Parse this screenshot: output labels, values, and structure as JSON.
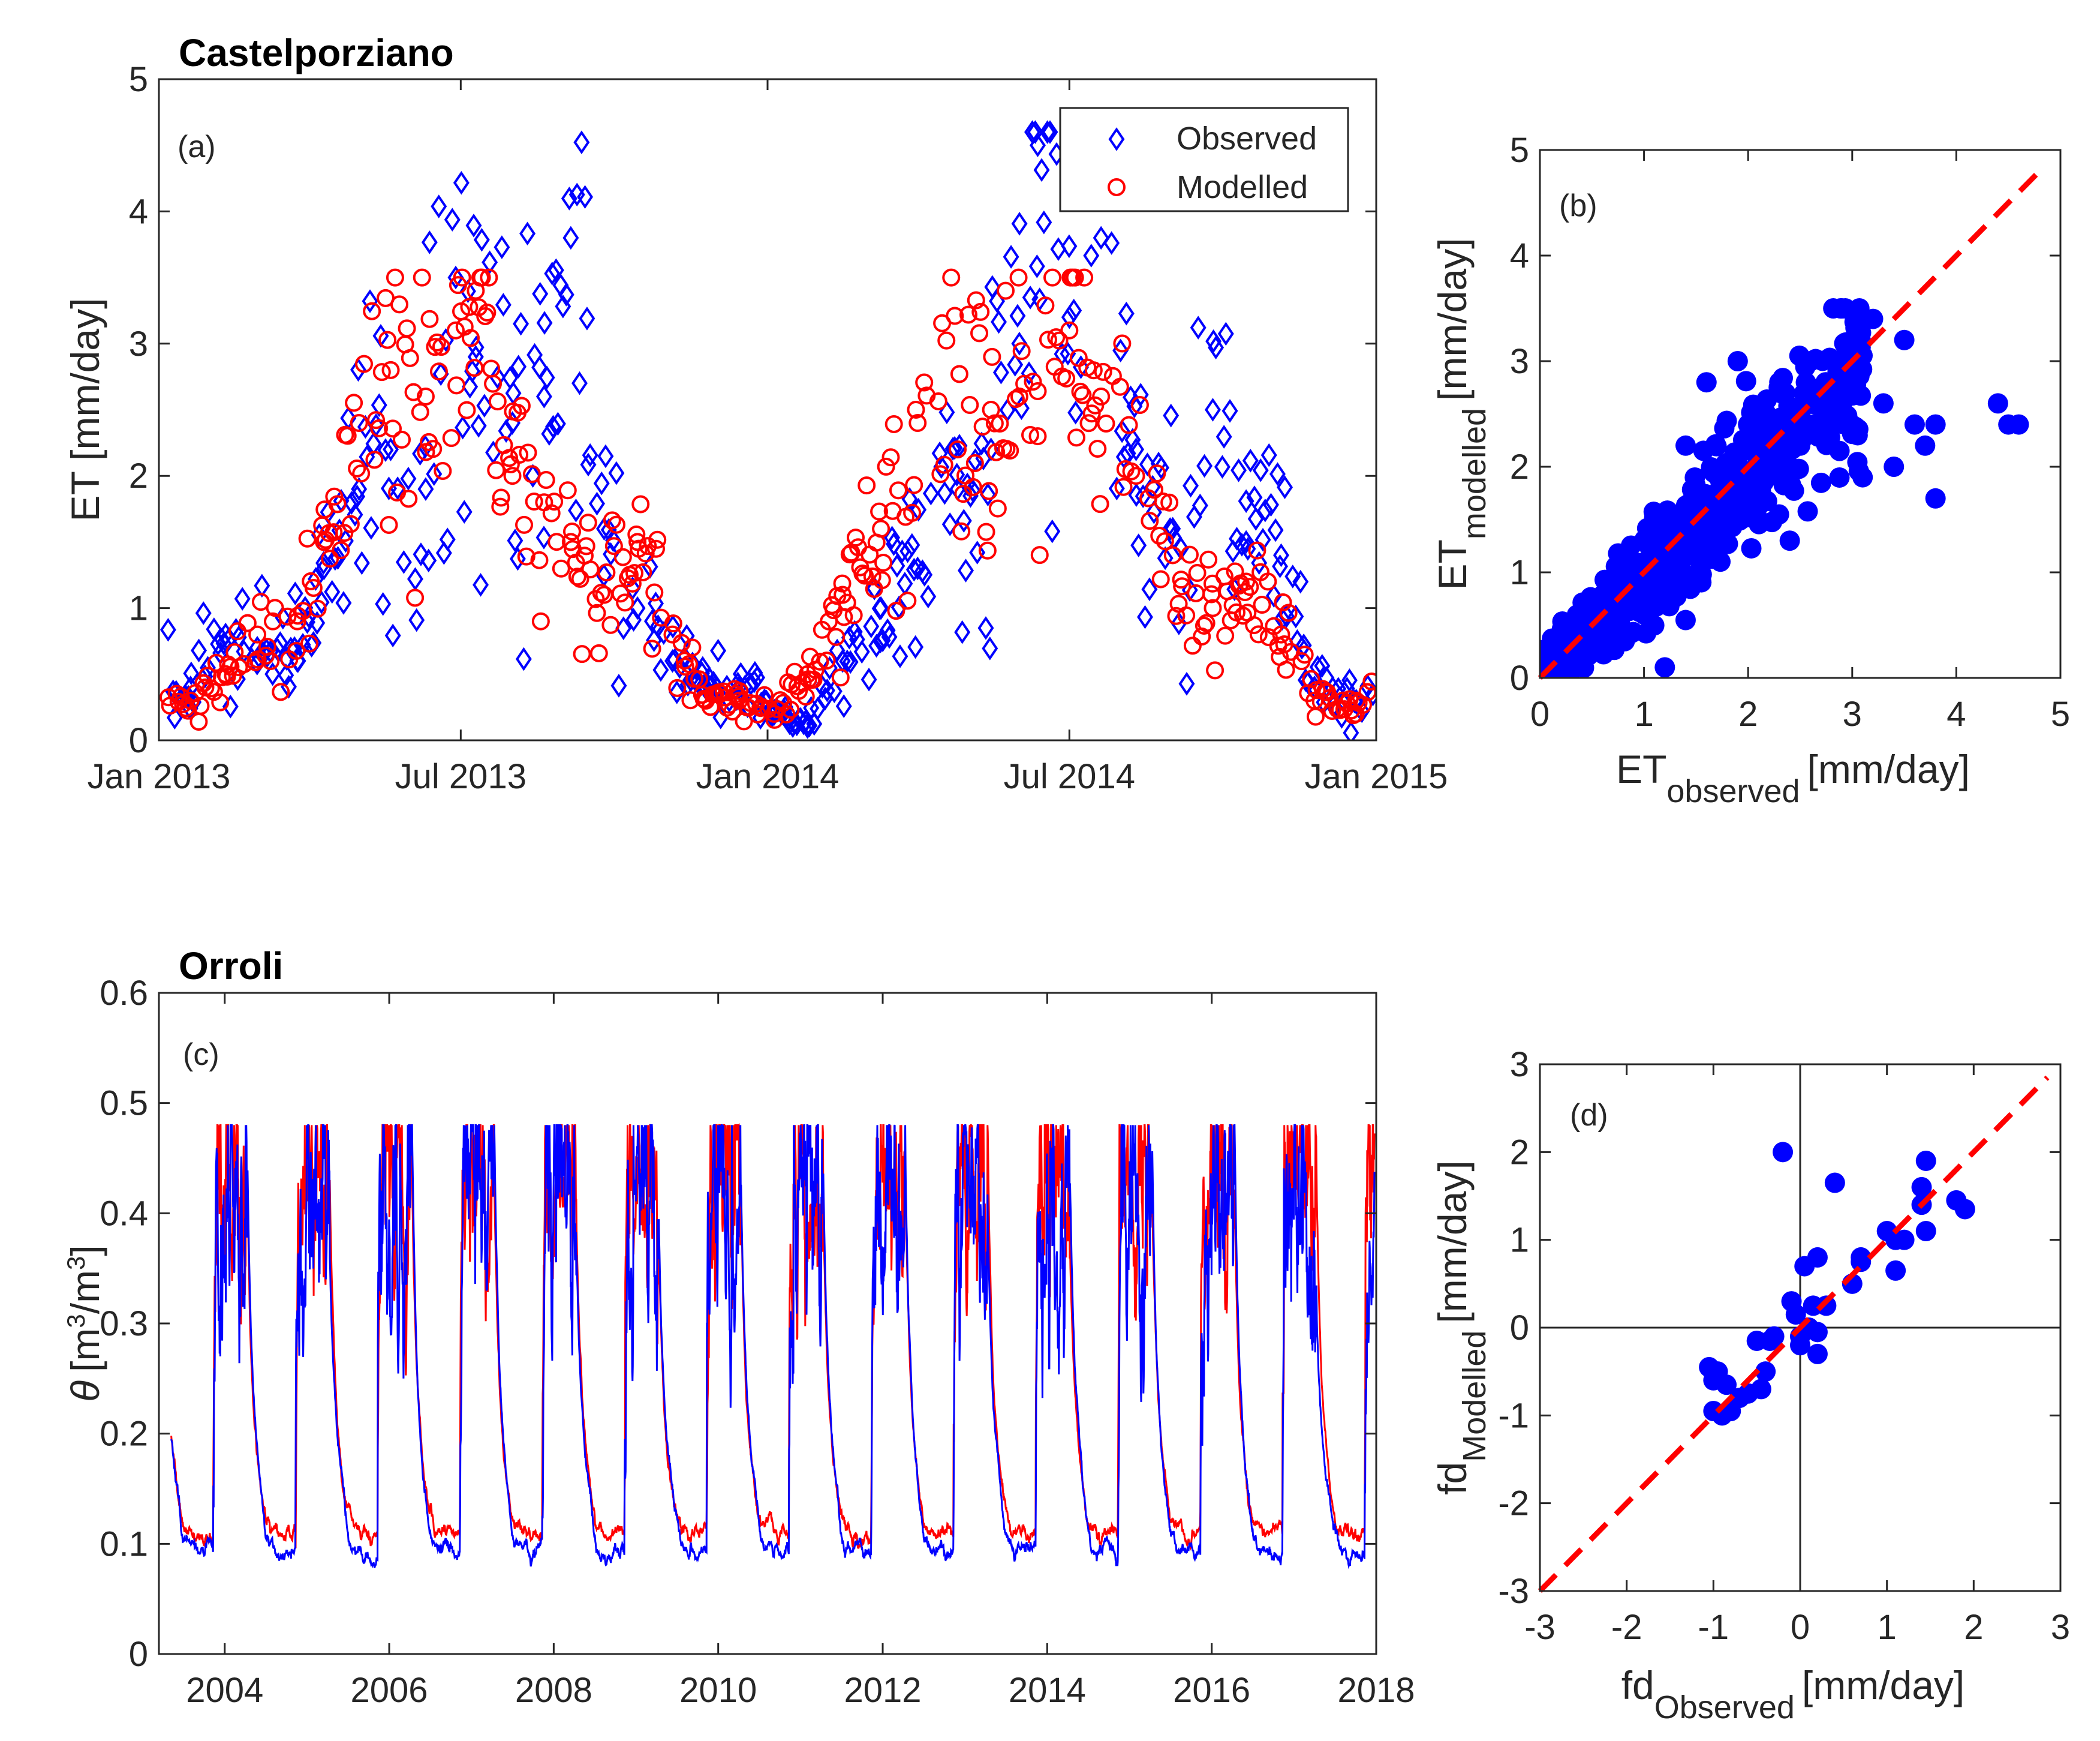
{
  "colors": {
    "observed": "#0000ff",
    "modelled": "#ff0000",
    "one_to_one": "#ff0000",
    "axis": "#262626"
  },
  "chart_data": [
    {
      "id": "a",
      "type": "scatter",
      "title": "Castelporziano",
      "panel_label": "(a)",
      "ylabel": "ET [mm/day]",
      "xlabel": "",
      "xlim": [
        "2013-01-01",
        "2015-01-01"
      ],
      "ylim": [
        0,
        5
      ],
      "x_ticklabels": [
        "Jan 2013",
        "Jul 2013",
        "Jan 2014",
        "Jul 2014",
        "Jan 2015"
      ],
      "y_ticklabels": [
        "0",
        "1",
        "2",
        "3",
        "4",
        "5"
      ],
      "legend_position": "top-right",
      "series": [
        {
          "name": "Observed",
          "marker": "diamond-open",
          "color": "#0000ff",
          "approx_points": [
            [
              "2013-01-20",
              0.4
            ],
            [
              "2013-02-10",
              0.8
            ],
            [
              "2013-03-01",
              0.7
            ],
            [
              "2013-03-25",
              0.6
            ],
            [
              "2013-04-10",
              1.3
            ],
            [
              "2013-05-01",
              1.9
            ],
            [
              "2013-05-20",
              2.2
            ],
            [
              "2013-06-10",
              1.9
            ],
            [
              "2013-06-28",
              3.5
            ],
            [
              "2013-07-10",
              2.9
            ],
            [
              "2013-08-01",
              2.4
            ],
            [
              "2013-08-20",
              2.6
            ],
            [
              "2013-09-05",
              3.8
            ],
            [
              "2013-09-25",
              1.6
            ],
            [
              "2013-10-15",
              1.0
            ],
            [
              "2013-11-05",
              0.6
            ],
            [
              "2013-11-25",
              0.4
            ],
            [
              "2013-12-15",
              0.4
            ],
            [
              "2014-01-05",
              0.2
            ],
            [
              "2014-01-25",
              0.1
            ],
            [
              "2014-02-15",
              0.6
            ],
            [
              "2014-03-10",
              1.0
            ],
            [
              "2014-04-01",
              1.3
            ],
            [
              "2014-04-25",
              1.9
            ],
            [
              "2014-05-15",
              2.2
            ],
            [
              "2014-06-01",
              3.0
            ],
            [
              "2014-06-12",
              4.5
            ],
            [
              "2014-07-01",
              3.2
            ],
            [
              "2014-07-20",
              3.8
            ],
            [
              "2014-08-10",
              2.2
            ],
            [
              "2014-09-01",
              1.6
            ],
            [
              "2014-09-25",
              2.5
            ],
            [
              "2014-10-15",
              1.5
            ],
            [
              "2014-11-05",
              1.4
            ],
            [
              "2014-11-25",
              0.4
            ],
            [
              "2014-12-20",
              0.3
            ]
          ]
        },
        {
          "name": "Modelled",
          "marker": "circle-open",
          "color": "#ff0000",
          "approx_points": [
            [
              "2013-01-20",
              0.3
            ],
            [
              "2013-02-10",
              0.5
            ],
            [
              "2013-03-01",
              0.8
            ],
            [
              "2013-03-25",
              0.9
            ],
            [
              "2013-04-10",
              1.5
            ],
            [
              "2013-05-01",
              2.4
            ],
            [
              "2013-05-20",
              2.8
            ],
            [
              "2013-06-10",
              2.6
            ],
            [
              "2013-06-28",
              3.1
            ],
            [
              "2013-07-10",
              3.4
            ],
            [
              "2013-08-01",
              2.0
            ],
            [
              "2013-08-20",
              1.8
            ],
            [
              "2013-09-05",
              1.5
            ],
            [
              "2013-09-25",
              1.1
            ],
            [
              "2013-10-15",
              1.5
            ],
            [
              "2013-11-05",
              0.8
            ],
            [
              "2013-11-25",
              0.3
            ],
            [
              "2013-12-15",
              0.3
            ],
            [
              "2014-01-05",
              0.2
            ],
            [
              "2014-01-25",
              0.5
            ],
            [
              "2014-02-15",
              1.1
            ],
            [
              "2014-03-10",
              1.6
            ],
            [
              "2014-04-01",
              2.4
            ],
            [
              "2014-04-25",
              2.2
            ],
            [
              "2014-05-15",
              2.5
            ],
            [
              "2014-06-01",
              2.6
            ],
            [
              "2014-06-12",
              2.3
            ],
            [
              "2014-07-01",
              3.1
            ],
            [
              "2014-07-20",
              2.6
            ],
            [
              "2014-08-10",
              2.0
            ],
            [
              "2014-09-01",
              1.4
            ],
            [
              "2014-09-25",
              1.0
            ],
            [
              "2014-10-15",
              1.2
            ],
            [
              "2014-11-05",
              0.8
            ],
            [
              "2014-11-25",
              0.3
            ],
            [
              "2014-12-20",
              0.3
            ]
          ]
        }
      ]
    },
    {
      "id": "b",
      "type": "scatter",
      "panel_label": "(b)",
      "xlabel_main": "ET",
      "xlabel_sub": "observed",
      "xlabel_unit": "[mm/day]",
      "ylabel_main": "ET",
      "ylabel_sub": "modelled",
      "ylabel_unit": "[mm/day]",
      "xlim": [
        0,
        5
      ],
      "ylim": [
        0,
        5
      ],
      "x_ticklabels": [
        "0",
        "1",
        "2",
        "3",
        "4",
        "5"
      ],
      "y_ticklabels": [
        "0",
        "1",
        "2",
        "3",
        "4",
        "5"
      ],
      "reference_line": {
        "style": "dashed",
        "color": "#ff0000",
        "from": [
          0,
          0
        ],
        "to": [
          4.85,
          4.85
        ]
      },
      "series": [
        {
          "name": "",
          "marker": "circle-filled",
          "color": "#0000ff",
          "approx_points": [
            [
              0.1,
              0.1
            ],
            [
              0.3,
              0.4
            ],
            [
              0.5,
              0.3
            ],
            [
              0.7,
              0.9
            ],
            [
              0.9,
              1.1
            ],
            [
              1.0,
              0.6
            ],
            [
              1.2,
              1.4
            ],
            [
              1.2,
              0.1
            ],
            [
              1.4,
              2.2
            ],
            [
              1.5,
              1.7
            ],
            [
              1.6,
              2.8
            ],
            [
              1.7,
              1.2
            ],
            [
              1.8,
              2.0
            ],
            [
              1.9,
              3.0
            ],
            [
              2.0,
              2.4
            ],
            [
              2.1,
              1.5
            ],
            [
              2.2,
              2.1
            ],
            [
              2.3,
              2.8
            ],
            [
              2.4,
              1.3
            ],
            [
              2.5,
              2.2
            ],
            [
              2.6,
              3.0
            ],
            [
              2.8,
              2.5
            ],
            [
              2.9,
              3.5
            ],
            [
              3.0,
              2.9
            ],
            [
              3.1,
              1.9
            ],
            [
              3.2,
              3.4
            ],
            [
              3.3,
              2.6
            ],
            [
              3.4,
              2.0
            ],
            [
              3.5,
              3.2
            ],
            [
              3.6,
              2.4
            ],
            [
              3.7,
              2.2
            ],
            [
              3.8,
              1.7
            ],
            [
              3.8,
              2.4
            ],
            [
              4.4,
              2.6
            ],
            [
              4.5,
              2.4
            ],
            [
              4.6,
              2.4
            ]
          ]
        }
      ]
    },
    {
      "id": "c",
      "type": "line",
      "title": "Orroli",
      "panel_label": "(c)",
      "ylabel_symbol": "θ",
      "ylabel_unit_parts": [
        "[m",
        "3",
        "/m",
        "3",
        "]"
      ],
      "xlim": [
        2003.2,
        2018.0
      ],
      "ylim": [
        0,
        0.6
      ],
      "x_ticklabels": [
        "2004",
        "2006",
        "2008",
        "2010",
        "2012",
        "2014",
        "2016",
        "2018"
      ],
      "y_ticklabels": [
        "0",
        "0.1",
        "0.2",
        "0.3",
        "0.4",
        "0.5",
        "0.6"
      ],
      "series": [
        {
          "name": "",
          "color": "#ff0000",
          "approx_seasonal_pattern": {
            "wet_season_level": [
              0.32,
              0.48
            ],
            "dry_season_level": [
              0.1,
              0.13
            ],
            "saturation_cap": 0.48
          }
        },
        {
          "name": "",
          "color": "#0000ff",
          "approx_seasonal_pattern": {
            "wet_season_level": [
              0.25,
              0.48
            ],
            "dry_season_level": [
              0.08,
              0.1
            ],
            "saturation_cap": 0.48
          }
        }
      ]
    },
    {
      "id": "d",
      "type": "scatter",
      "panel_label": "(d)",
      "xlabel_main": "fd",
      "xlabel_sub": "Observed",
      "xlabel_unit": "[mm/day]",
      "ylabel_main": "fd",
      "ylabel_sub": "Modelled",
      "ylabel_unit": "[mm/day]",
      "xlim": [
        -3,
        3
      ],
      "ylim": [
        -3,
        3
      ],
      "x_ticklabels": [
        "-3",
        "-2",
        "-1",
        "0",
        "1",
        "2",
        "3"
      ],
      "y_ticklabels": [
        "-3",
        "-2",
        "-1",
        "0",
        "1",
        "2",
        "3"
      ],
      "zero_lines": true,
      "reference_line": {
        "style": "dashed",
        "color": "#ff0000",
        "from": [
          -3,
          -3
        ],
        "to": [
          2.85,
          2.85
        ]
      },
      "series": [
        {
          "name": "",
          "marker": "circle-filled",
          "color": "#0000ff",
          "points": [
            [
              -0.2,
              2.0
            ],
            [
              0.2,
              0.8
            ],
            [
              0.05,
              0.7
            ],
            [
              0.4,
              1.65
            ],
            [
              -0.1,
              0.3
            ],
            [
              -0.05,
              0.15
            ],
            [
              0.1,
              0.0
            ],
            [
              -0.3,
              -0.1
            ],
            [
              -0.5,
              -0.15
            ],
            [
              -0.35,
              -0.15
            ],
            [
              0.0,
              -0.2
            ],
            [
              0.0,
              -0.1
            ],
            [
              0.2,
              -0.05
            ],
            [
              0.2,
              -0.3
            ],
            [
              0.15,
              0.25
            ],
            [
              -0.4,
              -0.5
            ],
            [
              -0.45,
              -0.7
            ],
            [
              -0.6,
              -0.75
            ],
            [
              -0.7,
              -0.8
            ],
            [
              -0.8,
              -0.95
            ],
            [
              -0.9,
              -1.0
            ],
            [
              -1.0,
              -0.6
            ],
            [
              -1.05,
              -0.45
            ],
            [
              -1.0,
              -0.95
            ],
            [
              -0.85,
              -0.65
            ],
            [
              -0.95,
              -0.5
            ],
            [
              0.3,
              0.25
            ],
            [
              0.6,
              0.5
            ],
            [
              0.7,
              0.75
            ],
            [
              0.7,
              0.8
            ],
            [
              1.0,
              1.1
            ],
            [
              1.1,
              1.0
            ],
            [
              1.1,
              0.65
            ],
            [
              1.2,
              1.0
            ],
            [
              1.4,
              1.4
            ],
            [
              1.4,
              1.6
            ],
            [
              1.45,
              1.9
            ],
            [
              1.45,
              1.1
            ],
            [
              1.8,
              1.45
            ],
            [
              1.9,
              1.35
            ]
          ]
        }
      ]
    }
  ]
}
